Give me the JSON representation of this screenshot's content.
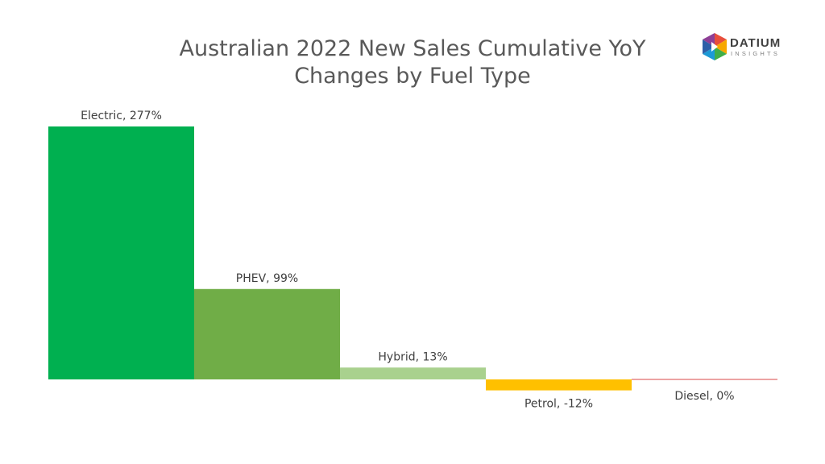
{
  "title_line1": "Australian 2022 New Sales Cumulative YoY",
  "title_line2": "Changes by Fuel Type",
  "logo": {
    "word": "DATIUM",
    "sub": "INSIGHTS"
  },
  "chart_data": {
    "type": "bar",
    "title": "Australian 2022 New Sales Cumulative YoY Changes by Fuel Type",
    "categories": [
      "Electric",
      "PHEV",
      "Hybrid",
      "Petrol",
      "Diesel"
    ],
    "values": [
      277,
      99,
      13,
      -12,
      0
    ],
    "data_labels": [
      "Electric, 277%",
      "PHEV, 99%",
      "Hybrid, 13%",
      "Petrol, -12%",
      "Diesel, 0%"
    ],
    "unit": "%",
    "colors": [
      "#00b050",
      "#70ad47",
      "#a9d18e",
      "#ffc000",
      "#e06666"
    ],
    "xlabel": "",
    "ylabel": "",
    "ylim": [
      -12,
      277
    ],
    "grid": false,
    "legend": "none"
  }
}
